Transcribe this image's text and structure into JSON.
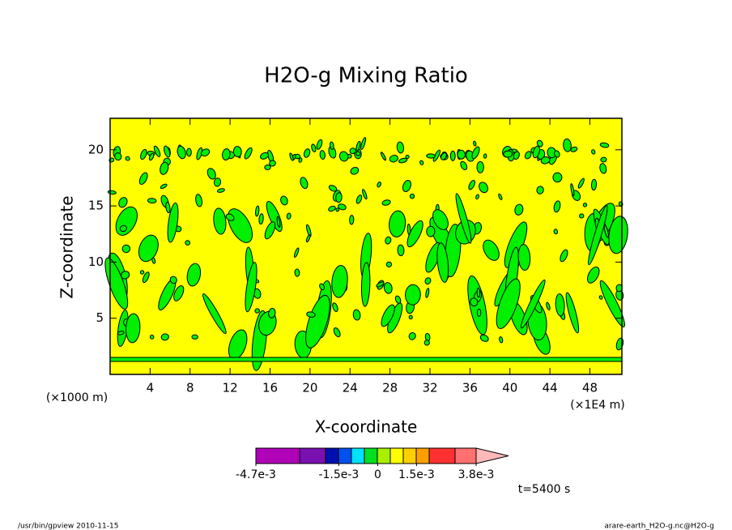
{
  "chart_data": {
    "type": "contour",
    "title": "H2O-g Mixing Ratio",
    "x_label": "X-coordinate",
    "y_label": "Z-coordinate",
    "x_unit": "(×1E4 m)",
    "y_unit": "(×1000 m)",
    "xlim": [
      0,
      51.2
    ],
    "xticks": [
      4,
      8,
      12,
      16,
      20,
      24,
      28,
      32,
      36,
      40,
      44,
      48
    ],
    "ylim": [
      0,
      22.8
    ],
    "yticks": [
      5,
      10,
      15,
      20
    ],
    "background_color": "#ffff00",
    "region_color": "#00f000",
    "colorbar": {
      "lim": [
        -0.0047,
        0.0038
      ],
      "colors": [
        "#b000b8",
        "#7a10b0",
        "#0010b0",
        "#0050f0",
        "#00e0ff",
        "#00e020",
        "#a8f000",
        "#ffff00",
        "#ffd000",
        "#ffa000",
        "#ff3030",
        "#ff7070",
        "#ffb8b8"
      ],
      "ticks": [
        {
          "value": -0.0047,
          "label": "-4.7e-3"
        },
        {
          "value": -0.0015,
          "label": "-1.5e-3"
        },
        0,
        {
          "value": 0.0015,
          "label": "1.5e-3"
        },
        {
          "value": 0.0038,
          "label": "3.8e-3"
        }
      ]
    },
    "time_label": "t=5400 s",
    "footer_left": "/usr/bin/gpview   2010-11-15",
    "footer_right": "arare-earth_H2O-g.nc@H2O-g"
  }
}
